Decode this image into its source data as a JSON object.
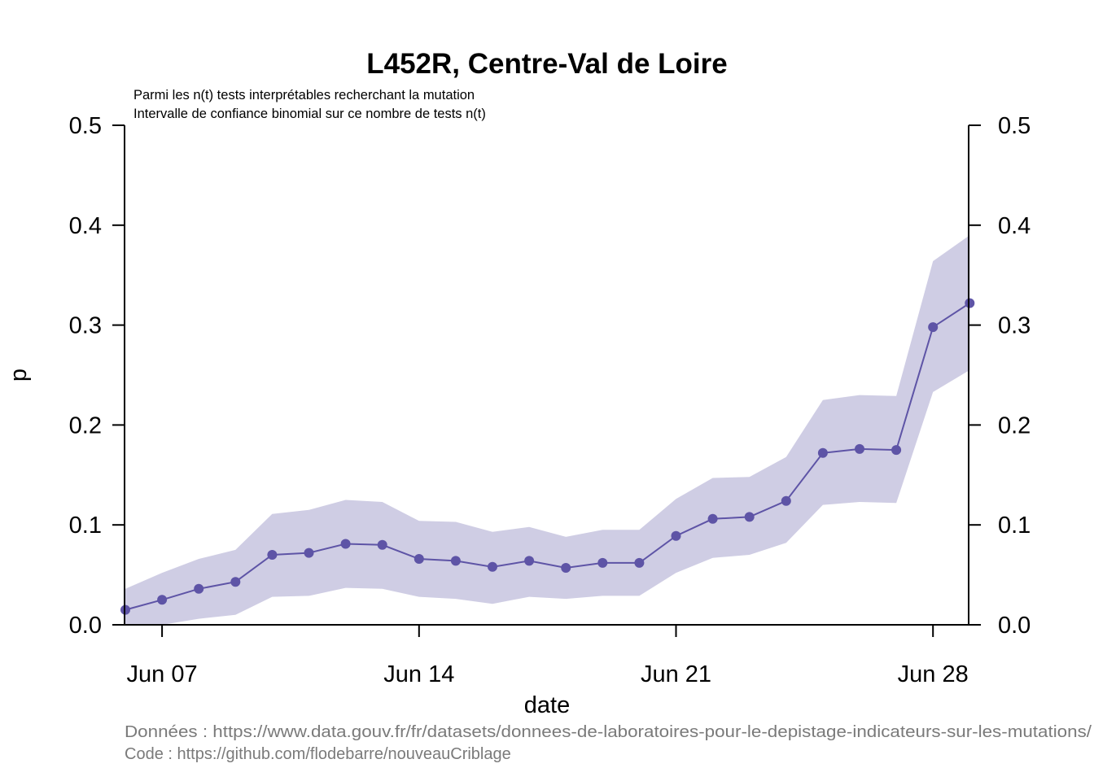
{
  "chart_data": {
    "type": "line",
    "title": "L452R, Centre-Val de Loire",
    "subtitles": [
      "Parmi les n(t) tests interprétables recherchant la mutation",
      "Intervalle de confiance binomial sur ce nombre de tests n(t)"
    ],
    "xlabel": "date",
    "ylabel": "p",
    "ylim": [
      0,
      0.5
    ],
    "yticks": [
      "0.0",
      "0.1",
      "0.2",
      "0.3",
      "0.4",
      "0.5"
    ],
    "xticks": [
      {
        "label": "Jun 07",
        "x": "2021-06-07"
      },
      {
        "label": "Jun 14",
        "x": "2021-06-14"
      },
      {
        "label": "Jun 21",
        "x": "2021-06-21"
      },
      {
        "label": "Jun 28",
        "x": "2021-06-28"
      }
    ],
    "grid": false,
    "axes": "left and right",
    "colors": {
      "line": "#5e54a6",
      "band": "#cfcde4"
    },
    "series": [
      {
        "x": [
          "2021-06-06",
          "2021-06-07",
          "2021-06-08",
          "2021-06-09",
          "2021-06-10",
          "2021-06-11",
          "2021-06-12",
          "2021-06-13",
          "2021-06-14",
          "2021-06-15",
          "2021-06-16",
          "2021-06-17",
          "2021-06-18",
          "2021-06-19",
          "2021-06-20",
          "2021-06-21",
          "2021-06-22",
          "2021-06-23",
          "2021-06-24",
          "2021-06-25",
          "2021-06-26",
          "2021-06-27",
          "2021-06-28",
          "2021-06-29"
        ],
        "values": [
          0.015,
          0.025,
          0.036,
          0.043,
          0.07,
          0.072,
          0.081,
          0.08,
          0.066,
          0.064,
          0.058,
          0.064,
          0.057,
          0.062,
          0.062,
          0.089,
          0.106,
          0.108,
          0.124,
          0.172,
          0.176,
          0.175,
          0.298,
          0.322
        ],
        "lower": [
          0.0,
          0.0,
          0.006,
          0.01,
          0.028,
          0.029,
          0.037,
          0.036,
          0.028,
          0.026,
          0.021,
          0.028,
          0.026,
          0.029,
          0.029,
          0.052,
          0.067,
          0.07,
          0.082,
          0.12,
          0.123,
          0.122,
          0.233,
          0.255
        ],
        "upper": [
          0.036,
          0.052,
          0.066,
          0.075,
          0.111,
          0.115,
          0.125,
          0.123,
          0.104,
          0.103,
          0.093,
          0.098,
          0.088,
          0.095,
          0.095,
          0.126,
          0.147,
          0.148,
          0.168,
          0.225,
          0.23,
          0.229,
          0.364,
          0.39
        ]
      }
    ]
  },
  "caption": {
    "data_source": "Données : https://www.data.gouv.fr/fr/datasets/donnees-de-laboratoires-pour-le-depistage-indicateurs-sur-les-mutations/",
    "code_source": "Code : https://github.com/flodebarre/nouveauCriblage"
  }
}
